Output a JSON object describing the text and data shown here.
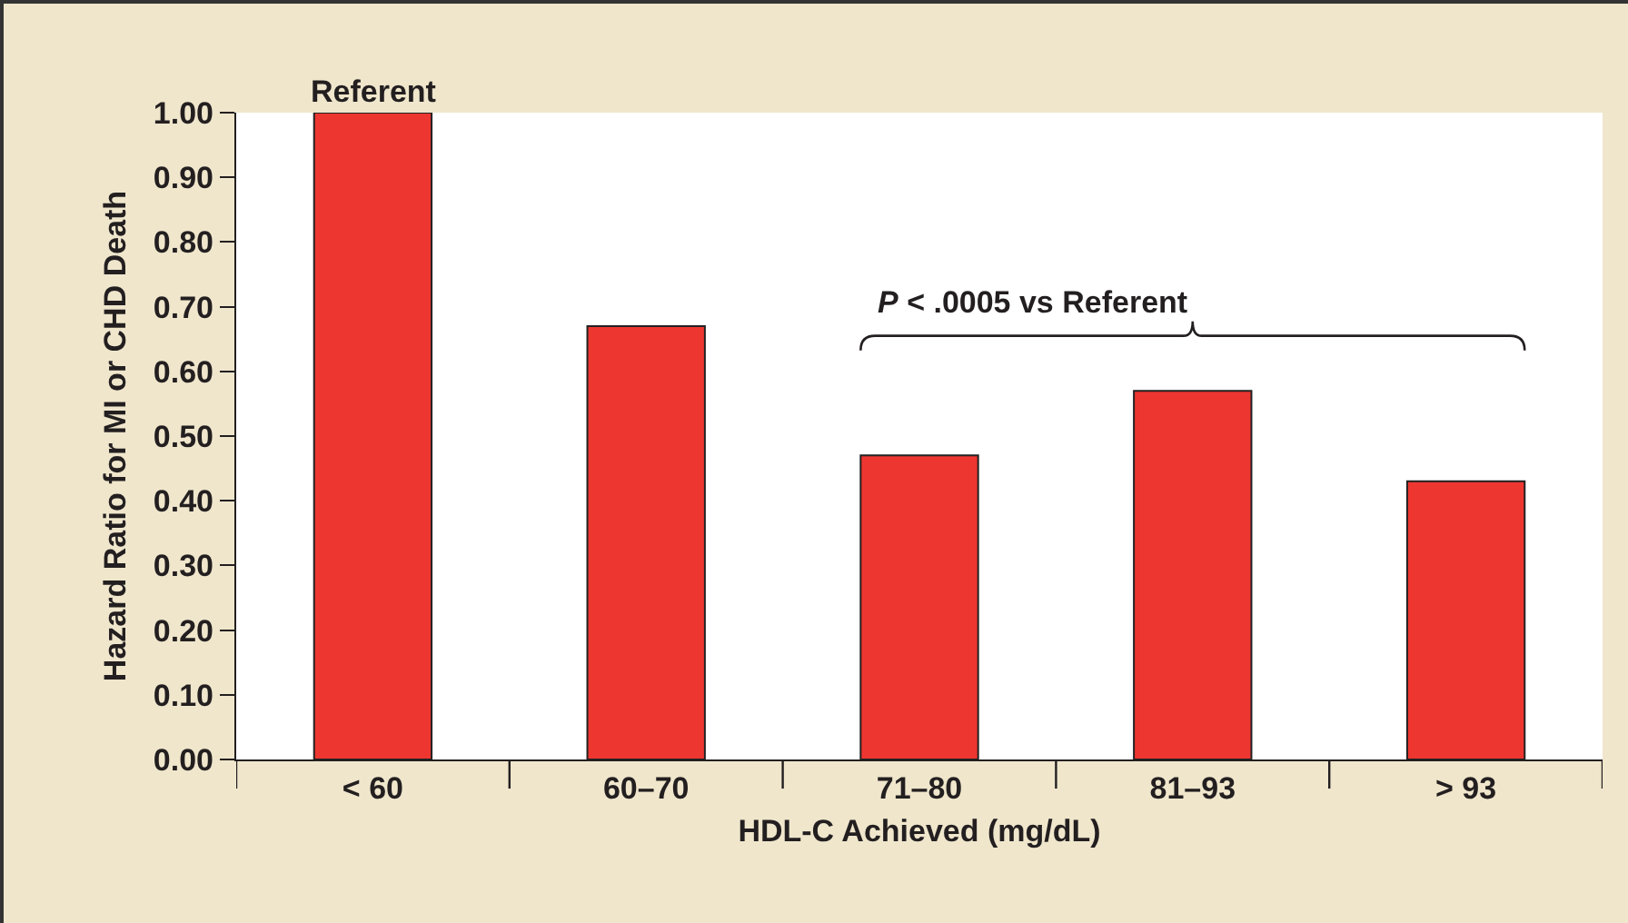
{
  "chart_data": {
    "type": "bar",
    "categories": [
      "< 60",
      "60–70",
      "71–80",
      "81–93",
      "> 93"
    ],
    "values": [
      1.0,
      0.67,
      0.47,
      0.57,
      0.43
    ],
    "color": "#ee3631",
    "xlabel": "HDL-C Achieved (mg/dL)",
    "ylabel": "Hazard Ratio for MI or CHD Death",
    "ylim": [
      0,
      1
    ],
    "yticks": [
      {
        "value": 0,
        "label": "0.00"
      },
      {
        "value": 0.1,
        "label": "0.10"
      },
      {
        "value": 0.2,
        "label": "0.20"
      },
      {
        "value": 0.3,
        "label": "0.30"
      },
      {
        "value": 0.4,
        "label": "0.40"
      },
      {
        "value": 0.5,
        "label": "0.50"
      },
      {
        "value": 0.6,
        "label": "0.60"
      },
      {
        "value": 0.7,
        "label": "0.70"
      },
      {
        "value": 0.8,
        "label": "0.80"
      },
      {
        "value": 0.9,
        "label": "0.90"
      },
      {
        "value": 1,
        "label": "1.00"
      }
    ],
    "annotations": [
      {
        "text": "Referent",
        "x": "< 60",
        "y": 1.0
      },
      "P < .0005 vs Referent"
    ],
    "grid": false,
    "legend": false
  }
}
